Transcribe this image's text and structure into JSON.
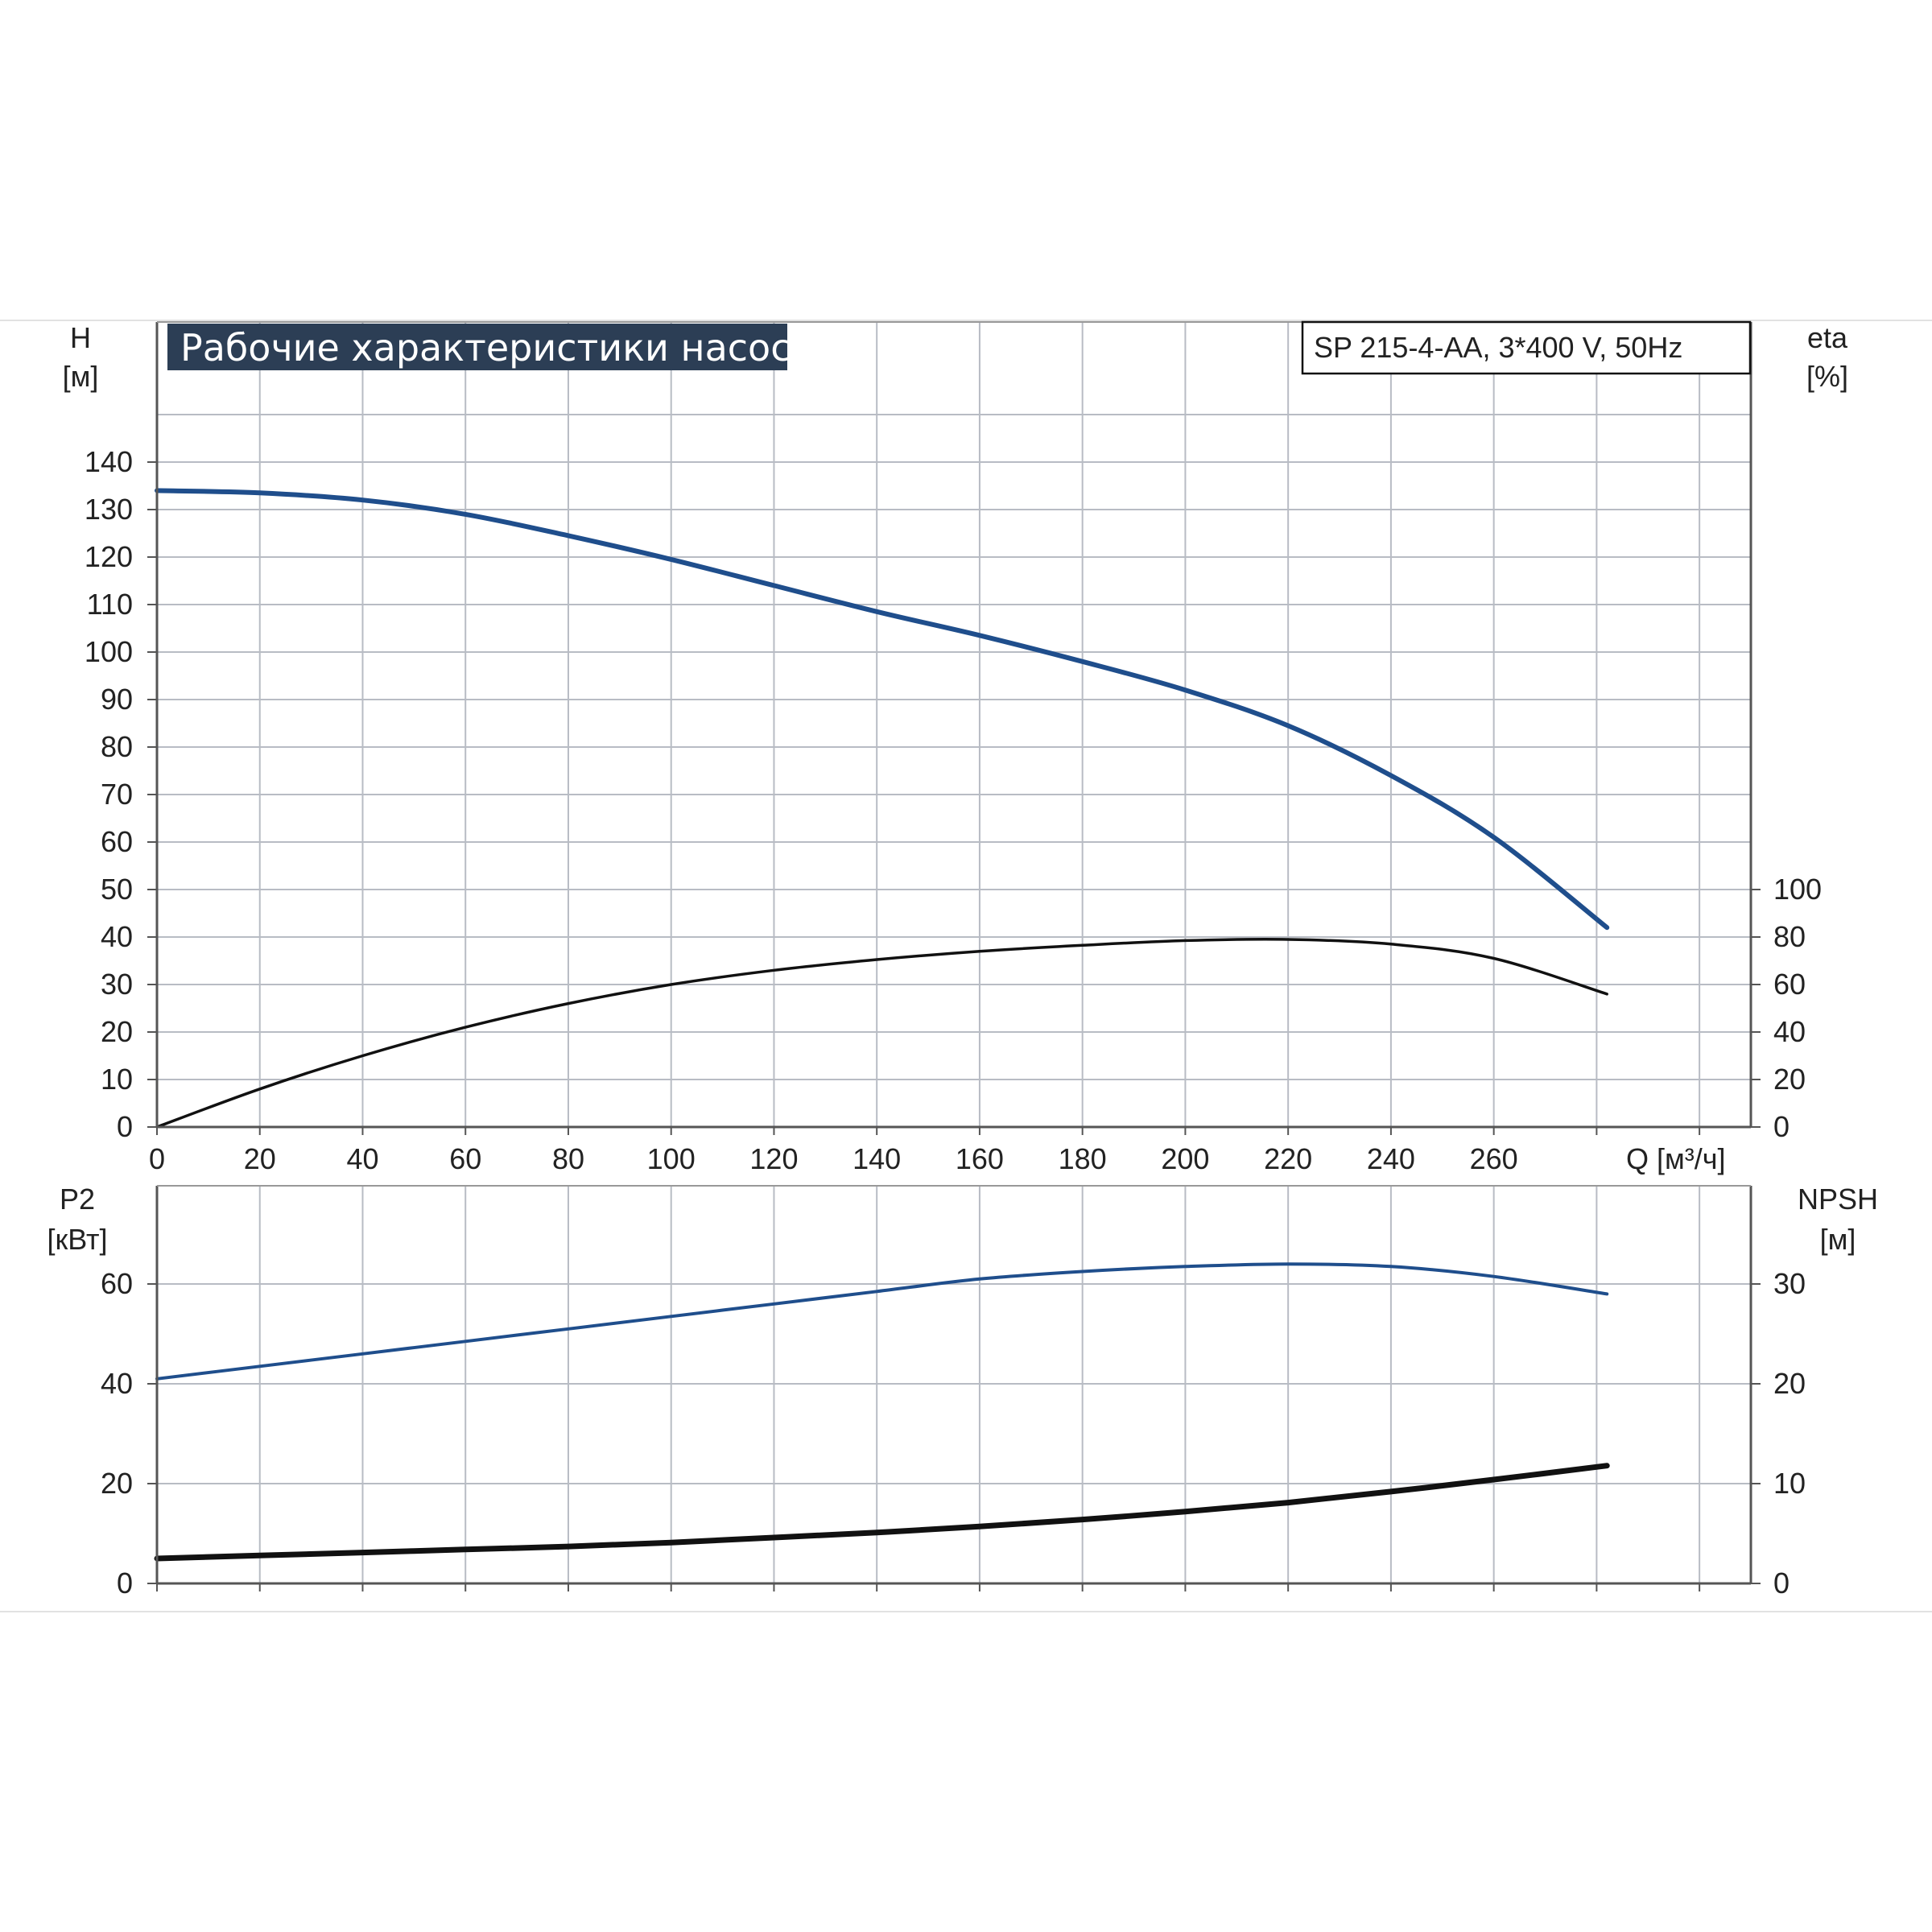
{
  "title": "Рабочие характеристики насоса",
  "model": "SP 215-4-AA, 3*400 V, 50Hz",
  "colors": {
    "accent": "#1f4e8c",
    "black": "#111111",
    "grid": "#b8bcc4",
    "title_bg": "#2c3e55"
  },
  "chart_data": [
    {
      "type": "line",
      "panel": "top",
      "x_label": "Q [м³/ч]",
      "xlim": [
        0,
        310
      ],
      "x_ticks": [
        "0",
        "20",
        "40",
        "60",
        "80",
        "100",
        "120",
        "140",
        "160",
        "180",
        "200",
        "220",
        "240",
        "260"
      ],
      "y_left": {
        "label": "H",
        "unit": "[м]",
        "ylim": [
          0,
          140
        ],
        "ticks": [
          "0",
          "10",
          "20",
          "30",
          "40",
          "50",
          "60",
          "70",
          "80",
          "90",
          "100",
          "110",
          "120",
          "130",
          "140"
        ]
      },
      "y_right": {
        "label": "eta",
        "unit": "[%]",
        "ylim": [
          0,
          100
        ],
        "ticks": [
          "0",
          "20",
          "40",
          "60",
          "80",
          "100"
        ]
      },
      "grid": true,
      "series": [
        {
          "axis": "left",
          "color": "#1f4e8c",
          "x": [
            0,
            20,
            40,
            60,
            80,
            100,
            120,
            140,
            160,
            180,
            200,
            220,
            240,
            260,
            282
          ],
          "y": [
            134,
            133.5,
            132,
            129,
            124.5,
            119.5,
            114,
            108.5,
            103.5,
            98,
            92,
            84.5,
            74,
            61,
            42
          ]
        },
        {
          "axis": "right",
          "color": "#111111",
          "x": [
            0,
            20,
            40,
            60,
            80,
            100,
            120,
            140,
            160,
            180,
            200,
            220,
            240,
            260,
            282
          ],
          "y": [
            0,
            16,
            30,
            42,
            52,
            60,
            66,
            70.5,
            74,
            76.5,
            78.5,
            79,
            77,
            71,
            56
          ]
        }
      ]
    },
    {
      "type": "line",
      "panel": "bottom",
      "xlim": [
        0,
        310
      ],
      "y_left": {
        "label": "P2",
        "unit": "[кВт]",
        "ylim": [
          0,
          80
        ],
        "ticks": [
          "0",
          "20",
          "40",
          "60"
        ]
      },
      "y_right": {
        "label": "NPSH",
        "unit": "[м]",
        "ylim": [
          0,
          40
        ],
        "ticks": [
          "0",
          "10",
          "20",
          "30"
        ]
      },
      "grid": true,
      "series": [
        {
          "axis": "left",
          "color": "#1f4e8c",
          "x": [
            0,
            20,
            40,
            60,
            80,
            100,
            120,
            140,
            160,
            180,
            200,
            220,
            240,
            260,
            282
          ],
          "y": [
            41,
            43.5,
            46,
            48.5,
            51,
            53.5,
            56,
            58.5,
            61,
            62.5,
            63.5,
            64,
            63.5,
            61.5,
            58
          ]
        },
        {
          "axis": "right",
          "color": "#111111",
          "x": [
            0,
            20,
            40,
            60,
            80,
            100,
            120,
            140,
            160,
            180,
            200,
            220,
            240,
            260,
            282
          ],
          "y": [
            2.5,
            2.8,
            3.1,
            3.4,
            3.7,
            4.1,
            4.6,
            5.1,
            5.7,
            6.4,
            7.2,
            8.1,
            9.2,
            10.4,
            11.8
          ]
        }
      ]
    }
  ]
}
